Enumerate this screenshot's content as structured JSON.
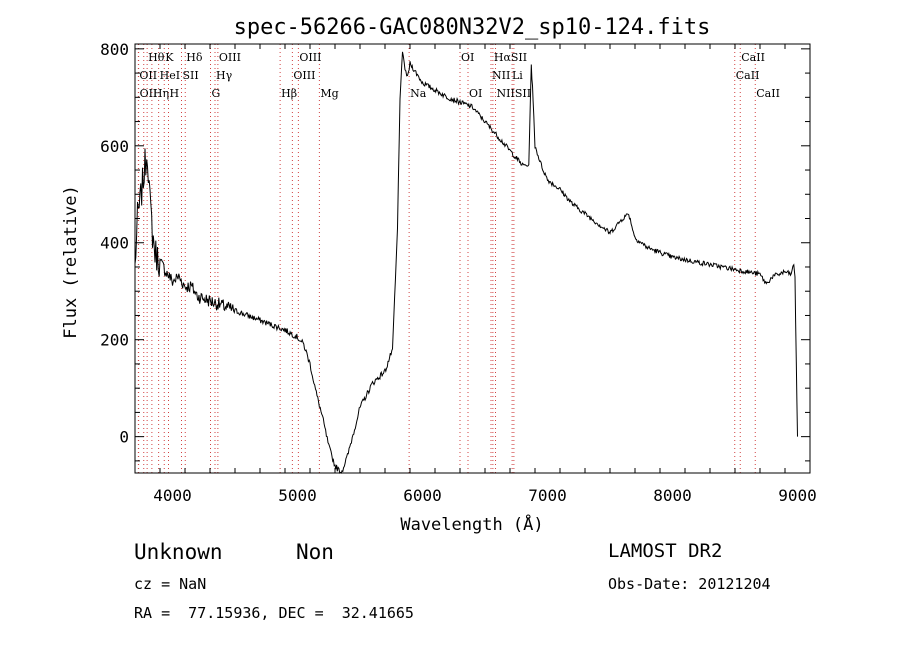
{
  "chart_data": {
    "type": "line",
    "title": "spec-56266-GAC080N32V2_sp10-124.fits",
    "xlabel": "Wavelength (Å)",
    "ylabel": "Flux (relative)",
    "xlim": [
      3700,
      9100
    ],
    "ylim": [
      -75,
      810
    ],
    "xticks": [
      4000,
      5000,
      6000,
      7000,
      8000,
      9000
    ],
    "yticks": [
      0,
      200,
      400,
      600,
      800
    ],
    "grid": false,
    "series": [
      {
        "x": [
          3700,
          3720,
          3740,
          3760,
          3780,
          3800,
          3820,
          3840,
          3860,
          3880,
          3900,
          3950,
          4000,
          4050,
          4100,
          4150,
          4200,
          4300,
          4400,
          4500,
          4600,
          4700,
          4800,
          4900,
          5000,
          5050,
          5100,
          5150,
          5200,
          5250,
          5300,
          5350,
          5400,
          5450,
          5500,
          5600,
          5700,
          5760,
          5800,
          5820,
          5840,
          5860,
          5880,
          5900,
          6000,
          6100,
          6200,
          6300,
          6400,
          6500,
          6600,
          6700,
          6800,
          6850,
          6870,
          6880,
          6890,
          6900,
          6950,
          7000,
          7100,
          7200,
          7300,
          7400,
          7500,
          7600,
          7650,
          7700,
          7800,
          7900,
          8000,
          8100,
          8200,
          8300,
          8400,
          8500,
          8600,
          8700,
          8750,
          8800,
          8900,
          8950,
          8970,
          8980,
          8990,
          9000
        ],
        "y": [
          350,
          450,
          480,
          520,
          560,
          590,
          480,
          420,
          380,
          370,
          360,
          340,
          320,
          330,
          310,
          310,
          290,
          280,
          270,
          260,
          250,
          240,
          230,
          220,
          205,
          190,
          150,
          90,
          40,
          -20,
          -60,
          -75,
          -40,
          10,
          60,
          110,
          135,
          180,
          430,
          700,
          790,
          760,
          740,
          770,
          730,
          715,
          700,
          690,
          680,
          650,
          620,
          590,
          560,
          560,
          765,
          720,
          660,
          600,
          560,
          530,
          510,
          480,
          460,
          440,
          420,
          450,
          460,
          410,
          390,
          380,
          370,
          365,
          360,
          355,
          350,
          345,
          340,
          335,
          315,
          330,
          340,
          335,
          355,
          330,
          150,
          0
        ]
      }
    ],
    "lines": {
      "rows": [
        [
          {
            "text": "Hθ",
            "x": 3797
          },
          {
            "text": "K",
            "x": 3934
          },
          {
            "text": "Hδ",
            "x": 4102
          },
          {
            "text": "OIII",
            "x": 4363
          },
          {
            "text": "OIII",
            "x": 5007
          },
          {
            "text": "OI",
            "x": 6300
          },
          {
            "text": "HαSII",
            "x": 6563
          },
          {
            "text": "CaII",
            "x": 8542
          }
        ],
        [
          {
            "text": "OII",
            "x": 3727
          },
          {
            "text": "HeI",
            "x": 3889
          },
          {
            "text": "SII",
            "x": 4072
          },
          {
            "text": "Hγ",
            "x": 4340
          },
          {
            "text": "OIII",
            "x": 4959
          },
          {
            "text": "NII",
            "x": 6548
          },
          {
            "text": "Li",
            "x": 6708
          },
          {
            "text": "CaII",
            "x": 8498
          }
        ],
        [
          {
            "text": "OII",
            "x": 3729
          },
          {
            "text": "Hη",
            "x": 3835
          },
          {
            "text": "H",
            "x": 3968
          },
          {
            "text": "G",
            "x": 4304
          },
          {
            "text": "Hβ",
            "x": 4861
          },
          {
            "text": "Mg",
            "x": 5175
          },
          {
            "text": "Na",
            "x": 5893
          },
          {
            "text": "OI",
            "x": 6364
          },
          {
            "text": "NIISII",
            "x": 6584
          },
          {
            "text": "CaII",
            "x": 8662
          }
        ]
      ],
      "markers": [
        3727,
        3729,
        3770,
        3797,
        3835,
        3889,
        3934,
        3968,
        4072,
        4102,
        4304,
        4340,
        4363,
        4861,
        4959,
        5007,
        5175,
        5893,
        6300,
        6364,
        6548,
        6563,
        6584,
        6717,
        6731,
        8498,
        8542,
        8662
      ]
    }
  },
  "info": {
    "class": "Unknown",
    "subclass": "Non",
    "survey": "LAMOST DR2",
    "cz": "cz = NaN",
    "obs_date": "Obs-Date: 20121204",
    "radec": "RA =  77.15936, DEC =  32.41665"
  }
}
